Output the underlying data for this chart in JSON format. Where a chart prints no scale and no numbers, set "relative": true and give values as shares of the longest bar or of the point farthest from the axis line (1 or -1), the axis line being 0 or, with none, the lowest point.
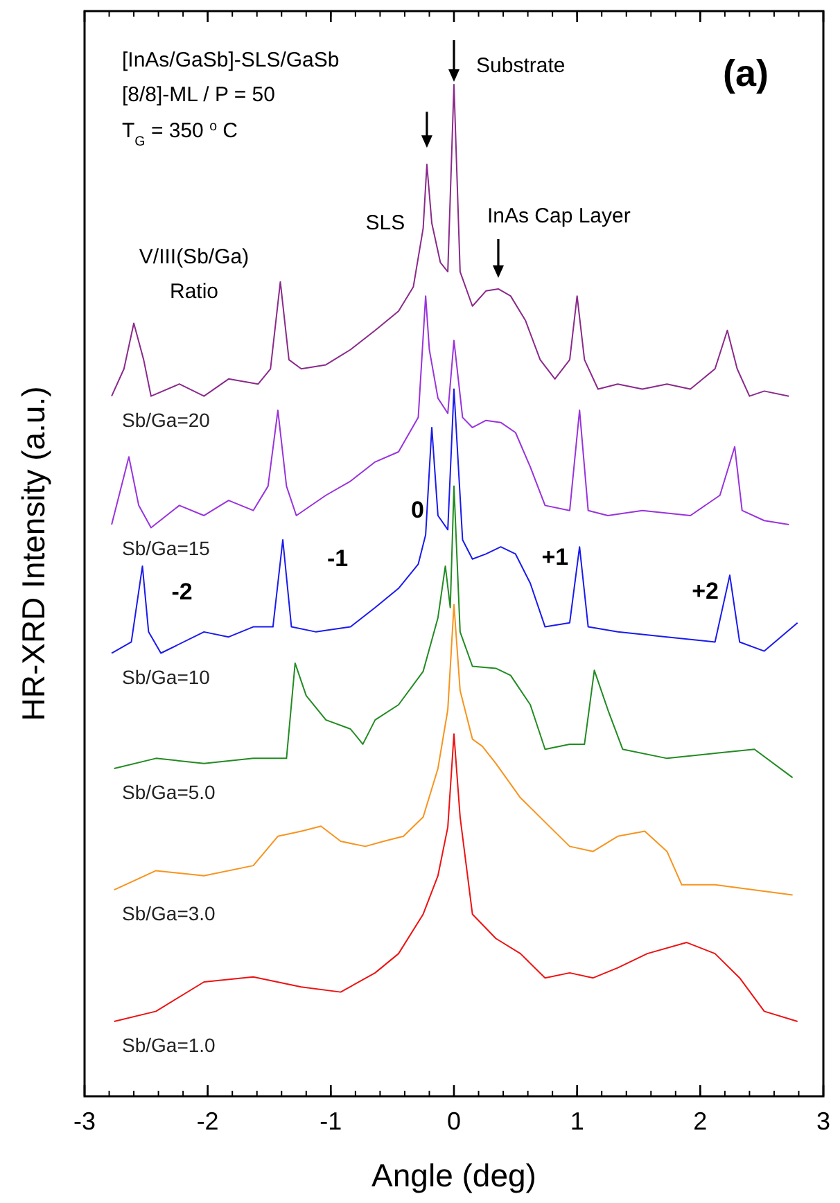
{
  "chart_data": {
    "type": "line",
    "relative": true,
    "xlabel": "Angle  (deg)",
    "ylabel": "HR-XRD Intensity  (a.u.)",
    "xlim": [
      -3,
      3
    ],
    "xticks": [
      -3,
      -2,
      -1,
      0,
      1,
      2,
      3
    ],
    "grid": false,
    "marker": "none",
    "line_style": "solid",
    "annotations": [
      "[InAs/GaSb]-SLS/GaSb",
      "[8/8]-ML / P = 50",
      "T$_{G}$ = 350 $^{o}$C",
      "(a)",
      "V/III(Sb/Ga) Ratio",
      {
        "text": "Substrate",
        "x": 0,
        "y": 1.0
      },
      {
        "text": "SLS",
        "x": -0.22,
        "y": 0.921
      },
      {
        "text": "InAs Cap Layer",
        "x": 0.36,
        "y": 0.798
      },
      {
        "text": "-2",
        "x": -2.53,
        "y": 0.524
      },
      {
        "text": "-1",
        "x": -1.39,
        "y": 0.55
      },
      {
        "text": "0",
        "x": -0.18,
        "y": 0.661
      },
      {
        "text": "+1",
        "x": 1.02,
        "y": 0.543
      },
      {
        "text": "+2",
        "x": 2.24,
        "y": 0.515
      }
    ],
    "series": [
      {
        "name": "Sb/Ga=20",
        "color": "#8b2a8b",
        "x": [
          -2.78,
          -2.68,
          -2.6,
          -2.52,
          -2.46,
          -2.23,
          -2.03,
          -1.83,
          -1.59,
          -1.49,
          -1.41,
          -1.34,
          -1.24,
          -1.04,
          -0.84,
          -0.64,
          -0.45,
          -0.33,
          -0.25,
          -0.22,
          -0.18,
          -0.11,
          -0.05,
          0,
          0.05,
          0.15,
          0.26,
          0.36,
          0.46,
          0.58,
          0.7,
          0.82,
          0.94,
          1.0,
          1.06,
          1.17,
          1.33,
          1.53,
          1.73,
          1.92,
          2.12,
          2.22,
          2.3,
          2.4,
          2.52,
          2.72
        ],
        "values": [
          0.692,
          0.719,
          0.764,
          0.728,
          0.692,
          0.704,
          0.692,
          0.709,
          0.704,
          0.719,
          0.805,
          0.728,
          0.719,
          0.723,
          0.738,
          0.757,
          0.776,
          0.8,
          0.858,
          0.921,
          0.863,
          0.824,
          0.815,
          1.0,
          0.815,
          0.781,
          0.796,
          0.798,
          0.791,
          0.767,
          0.728,
          0.709,
          0.728,
          0.791,
          0.728,
          0.699,
          0.704,
          0.699,
          0.704,
          0.699,
          0.719,
          0.757,
          0.719,
          0.692,
          0.697,
          0.692
        ]
      },
      {
        "name": "Sb/Ga=15",
        "color": "#9933dd",
        "x": [
          -2.78,
          -2.64,
          -2.56,
          -2.46,
          -2.23,
          -2.03,
          -1.83,
          -1.63,
          -1.51,
          -1.43,
          -1.36,
          -1.28,
          -1.04,
          -0.84,
          -0.64,
          -0.45,
          -0.29,
          -0.23,
          -0.2,
          -0.13,
          -0.05,
          0,
          0.07,
          0.15,
          0.26,
          0.38,
          0.5,
          0.62,
          0.74,
          0.94,
          1.02,
          1.09,
          1.25,
          1.53,
          1.92,
          2.16,
          2.28,
          2.34,
          2.52,
          2.72
        ],
        "values": [
          0.565,
          0.632,
          0.584,
          0.562,
          0.584,
          0.574,
          0.589,
          0.579,
          0.603,
          0.678,
          0.603,
          0.574,
          0.594,
          0.608,
          0.627,
          0.637,
          0.671,
          0.791,
          0.738,
          0.69,
          0.675,
          0.747,
          0.671,
          0.661,
          0.668,
          0.666,
          0.656,
          0.622,
          0.584,
          0.579,
          0.678,
          0.579,
          0.574,
          0.579,
          0.574,
          0.594,
          0.642,
          0.579,
          0.569,
          0.565
        ]
      },
      {
        "name": "Sb/Ga=10",
        "color": "#1a1aee",
        "x": [
          -2.78,
          -2.62,
          -2.53,
          -2.48,
          -2.38,
          -2.03,
          -1.83,
          -1.63,
          -1.47,
          -1.39,
          -1.32,
          -1.12,
          -0.84,
          -0.64,
          -0.45,
          -0.29,
          -0.23,
          -0.18,
          -0.13,
          -0.05,
          0,
          0.07,
          0.15,
          0.26,
          0.38,
          0.5,
          0.62,
          0.74,
          0.94,
          1.02,
          1.09,
          1.33,
          1.73,
          2.12,
          2.24,
          2.32,
          2.52,
          2.79
        ],
        "values": [
          0.438,
          0.449,
          0.524,
          0.459,
          0.438,
          0.459,
          0.454,
          0.464,
          0.464,
          0.55,
          0.464,
          0.459,
          0.464,
          0.483,
          0.502,
          0.526,
          0.555,
          0.661,
          0.574,
          0.56,
          0.699,
          0.55,
          0.531,
          0.536,
          0.543,
          0.536,
          0.507,
          0.464,
          0.468,
          0.543,
          0.464,
          0.459,
          0.454,
          0.449,
          0.515,
          0.449,
          0.44,
          0.468
        ]
      },
      {
        "name": "Sb/Ga=5.0",
        "color": "#228b22",
        "x": [
          -2.76,
          -2.42,
          -2.03,
          -1.63,
          -1.36,
          -1.29,
          -1.2,
          -1.04,
          -0.84,
          -0.74,
          -0.64,
          -0.45,
          -0.25,
          -0.13,
          -0.07,
          -0.03,
          0,
          0.05,
          0.15,
          0.34,
          0.46,
          0.62,
          0.74,
          0.94,
          1.06,
          1.14,
          1.25,
          1.37,
          1.73,
          2.12,
          2.44,
          2.75
        ],
        "values": [
          0.324,
          0.334,
          0.329,
          0.334,
          0.334,
          0.428,
          0.396,
          0.372,
          0.363,
          0.348,
          0.372,
          0.387,
          0.42,
          0.473,
          0.524,
          0.483,
          0.603,
          0.459,
          0.425,
          0.423,
          0.416,
          0.387,
          0.343,
          0.348,
          0.348,
          0.421,
          0.382,
          0.343,
          0.334,
          0.339,
          0.343,
          0.315
        ]
      },
      {
        "name": "Sb/Ga=3.0",
        "color": "#f7941d",
        "x": [
          -2.76,
          -2.42,
          -2.03,
          -1.63,
          -1.43,
          -1.24,
          -1.08,
          -0.92,
          -0.72,
          -0.57,
          -0.41,
          -0.25,
          -0.13,
          -0.05,
          0,
          0.05,
          0.15,
          0.23,
          0.34,
          0.54,
          0.74,
          0.94,
          1.13,
          1.33,
          1.55,
          1.73,
          1.85,
          2.12,
          2.44,
          2.75
        ],
        "values": [
          0.204,
          0.223,
          0.218,
          0.228,
          0.257,
          0.262,
          0.267,
          0.252,
          0.247,
          0.252,
          0.257,
          0.276,
          0.324,
          0.382,
          0.486,
          0.401,
          0.353,
          0.346,
          0.329,
          0.295,
          0.271,
          0.247,
          0.242,
          0.257,
          0.262,
          0.242,
          0.209,
          0.209,
          0.204,
          0.199
        ]
      },
      {
        "name": "Sb/Ga=1.0",
        "color": "#ee1111",
        "x": [
          -2.76,
          -2.42,
          -2.03,
          -1.63,
          -1.24,
          -0.92,
          -0.64,
          -0.45,
          -0.25,
          -0.13,
          -0.05,
          0,
          0.05,
          0.15,
          0.34,
          0.54,
          0.74,
          0.94,
          1.13,
          1.33,
          1.57,
          1.89,
          2.12,
          2.32,
          2.52,
          2.79
        ],
        "values": [
          0.074,
          0.084,
          0.113,
          0.118,
          0.108,
          0.103,
          0.122,
          0.141,
          0.18,
          0.218,
          0.266,
          0.358,
          0.276,
          0.18,
          0.156,
          0.141,
          0.117,
          0.122,
          0.117,
          0.127,
          0.141,
          0.152,
          0.141,
          0.117,
          0.084,
          0.074
        ]
      }
    ]
  }
}
